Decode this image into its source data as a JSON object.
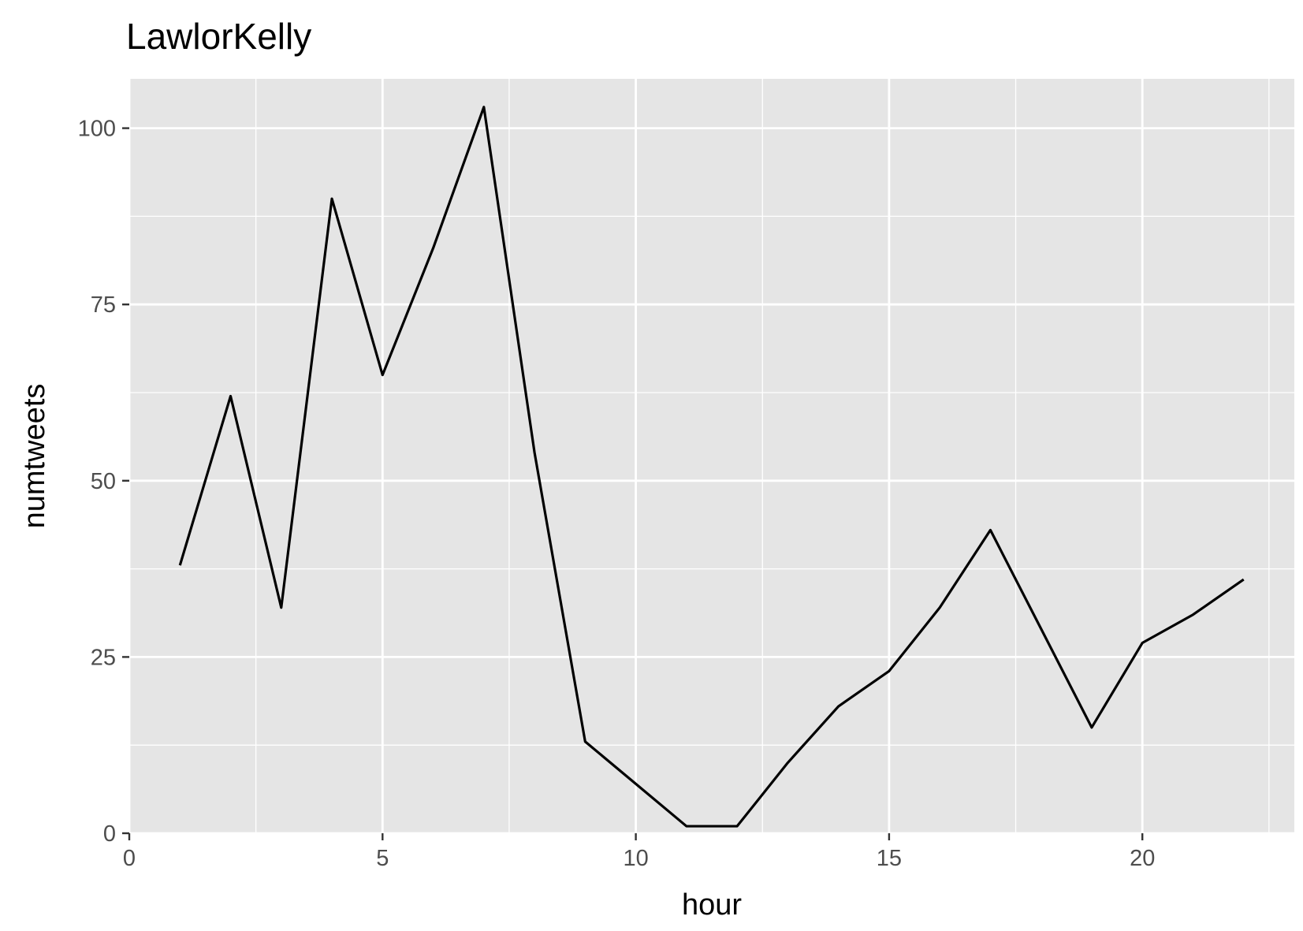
{
  "chart_data": {
    "type": "line",
    "title": "LawlorKelly",
    "xlabel": "hour",
    "ylabel": "numtweets",
    "xlim": [
      0,
      23
    ],
    "ylim": [
      0,
      107
    ],
    "x_ticks": [
      0,
      5,
      10,
      15,
      20
    ],
    "x_tick_labels": [
      "0",
      "5",
      "10",
      "15",
      "20"
    ],
    "y_ticks": [
      0,
      25,
      50,
      75,
      100
    ],
    "y_tick_labels": [
      "0",
      "25",
      "50",
      "75",
      "100"
    ],
    "grid": true,
    "legend": "none",
    "colors": {
      "panel_background": "#e5e5e5",
      "grid": "#ffffff",
      "line": "#000000",
      "ticks": "#333333"
    },
    "series": [
      {
        "x": [
          1,
          2,
          3,
          4,
          5,
          6,
          7,
          8,
          9,
          10,
          11,
          12,
          13,
          14,
          15,
          16,
          17,
          18,
          19,
          20,
          21,
          22
        ],
        "values": [
          38,
          62,
          32,
          90,
          65,
          83,
          103,
          54,
          13,
          7,
          1,
          1,
          10,
          18,
          23,
          32,
          43,
          29,
          15,
          27,
          31,
          36
        ]
      }
    ]
  }
}
